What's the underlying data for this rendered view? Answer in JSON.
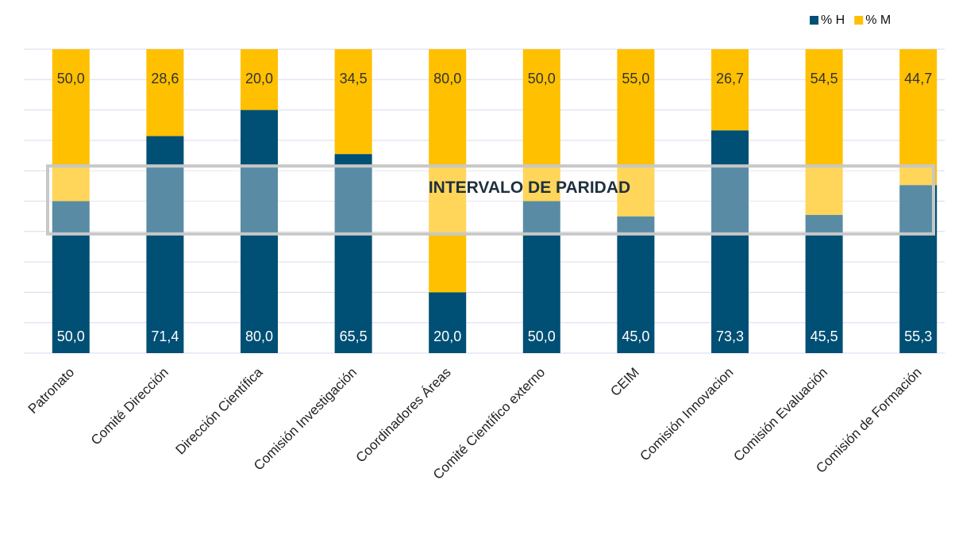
{
  "chart_data": {
    "type": "stacked_bar",
    "categories": [
      "Patronato",
      "Comité Dirección",
      "Dirección Científica",
      "Comisión Investigación",
      "Coordinadores Áreas",
      "Comité Científico externo",
      "CEIM",
      "Comisión Innovacion",
      "Comisión Evaluación",
      "Comisión de Formación"
    ],
    "series": [
      {
        "name": "% H",
        "color": "#004f74",
        "values": [
          50.0,
          71.4,
          80.0,
          65.5,
          20.0,
          50.0,
          45.0,
          73.3,
          45.5,
          55.3
        ],
        "value_labels": [
          "50,0",
          "71,4",
          "80,0",
          "65,5",
          "20,0",
          "50,0",
          "45,0",
          "73,3",
          "45,5",
          "55,3"
        ]
      },
      {
        "name": "% M",
        "color": "#ffc000",
        "values": [
          50.0,
          28.6,
          20.0,
          34.5,
          80.0,
          50.0,
          55.0,
          26.7,
          54.5,
          44.7
        ],
        "value_labels": [
          "50,0",
          "28,6",
          "20,0",
          "34,5",
          "80,0",
          "50,0",
          "55,0",
          "26,7",
          "54,5",
          "44,7"
        ]
      }
    ],
    "ylim": [
      0,
      100
    ],
    "grid_lines": [
      0,
      10,
      20,
      30,
      40,
      50,
      60,
      70,
      80,
      90,
      100
    ],
    "legend": "top-right",
    "parity_band": {
      "label": "INTERVALO DE PARIDAD",
      "range": [
        40,
        60
      ]
    }
  }
}
